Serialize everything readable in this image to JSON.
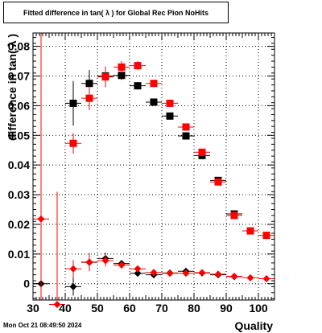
{
  "chart_data": {
    "type": "scatter",
    "title": "Fitted difference in tan( λ ) for Global Rec Pion NoHits",
    "xlabel": "Quality",
    "ylabel": "difference in tan( λ )",
    "xlim": [
      30,
      105
    ],
    "ylim": [
      -0.0055,
      0.0845
    ],
    "grid": true,
    "xticks": [
      30,
      40,
      50,
      60,
      70,
      80,
      90,
      100
    ],
    "yticks": [
      0,
      0.01,
      0.02,
      0.03,
      0.04,
      0.05,
      0.06,
      0.07,
      0.08
    ],
    "ytick_labels": [
      "0",
      "0.01",
      "0.02",
      "0.03",
      "0.04",
      "0.05",
      "0.06",
      "0.07",
      "0.08"
    ],
    "series": [
      {
        "color": "#000000",
        "marker": "square",
        "points": [
          {
            "x": 42.5,
            "y": 0.0608,
            "err": 0.0075
          },
          {
            "x": 47.5,
            "y": 0.0675,
            "err": 0.0045
          },
          {
            "x": 52.5,
            "y": 0.07,
            "err": 0.0025
          },
          {
            "x": 57.5,
            "y": 0.0702,
            "err": 0.0015
          },
          {
            "x": 62.5,
            "y": 0.0667,
            "err": 0.001
          },
          {
            "x": 67.5,
            "y": 0.0612,
            "err": 0.0008
          },
          {
            "x": 72.5,
            "y": 0.0565,
            "err": 0.0006
          },
          {
            "x": 77.5,
            "y": 0.0498,
            "err": 0.0005
          },
          {
            "x": 82.5,
            "y": 0.0432,
            "err": 0.0005
          },
          {
            "x": 87.5,
            "y": 0.0348,
            "err": 0.0005
          },
          {
            "x": 92.5,
            "y": 0.0235,
            "err": 0.0004
          }
        ]
      },
      {
        "color": "#ff0000",
        "marker": "square",
        "points": [
          {
            "x": 42.5,
            "y": 0.0473,
            "err": 0.0035
          },
          {
            "x": 47.5,
            "y": 0.0625,
            "err": 0.004
          },
          {
            "x": 52.5,
            "y": 0.0697,
            "err": 0.0035
          },
          {
            "x": 57.5,
            "y": 0.073,
            "err": 0.002
          },
          {
            "x": 62.5,
            "y": 0.0735,
            "err": 0.0015
          },
          {
            "x": 67.5,
            "y": 0.0675,
            "err": 0.001
          },
          {
            "x": 72.5,
            "y": 0.0608,
            "err": 0.0008
          },
          {
            "x": 77.5,
            "y": 0.0528,
            "err": 0.0006
          },
          {
            "x": 82.5,
            "y": 0.0443,
            "err": 0.0005
          },
          {
            "x": 87.5,
            "y": 0.0343,
            "err": 0.0005
          },
          {
            "x": 92.5,
            "y": 0.023,
            "err": 0.0004
          },
          {
            "x": 97.5,
            "y": 0.0178,
            "err": 0.0004
          },
          {
            "x": 102.5,
            "y": 0.0163,
            "err": 0.0004
          }
        ]
      },
      {
        "color": "#000000",
        "marker": "diamond",
        "points": [
          {
            "x": 32.5,
            "y": 0.0,
            "err": 0.008
          },
          {
            "x": 42.5,
            "y": -0.001,
            "err": 0.003
          },
          {
            "x": 47.5,
            "y": 0.0072,
            "err": 0.003
          },
          {
            "x": 52.5,
            "y": 0.0085,
            "err": 0.002
          },
          {
            "x": 57.5,
            "y": 0.0068,
            "err": 0.0012
          },
          {
            "x": 62.5,
            "y": 0.0035,
            "err": 0.001
          },
          {
            "x": 67.5,
            "y": 0.003,
            "err": 0.0007
          },
          {
            "x": 72.5,
            "y": 0.0036,
            "err": 0.0006
          },
          {
            "x": 77.5,
            "y": 0.0042,
            "err": 0.0005
          },
          {
            "x": 82.5,
            "y": 0.0036,
            "err": 0.0005
          },
          {
            "x": 87.5,
            "y": 0.003,
            "err": 0.0005
          },
          {
            "x": 92.5,
            "y": 0.0024,
            "err": 0.0004
          }
        ]
      },
      {
        "color": "#ff0000",
        "marker": "diamond",
        "points": [
          {
            "x": 32.5,
            "y": 0.0218,
            "err": 0.09
          },
          {
            "x": 37.5,
            "y": -0.007,
            "err": 0.038
          },
          {
            "x": 42.5,
            "y": 0.005,
            "err": 0.003
          },
          {
            "x": 47.5,
            "y": 0.0073,
            "err": 0.003
          },
          {
            "x": 52.5,
            "y": 0.0078,
            "err": 0.002
          },
          {
            "x": 57.5,
            "y": 0.0063,
            "err": 0.0012
          },
          {
            "x": 62.5,
            "y": 0.005,
            "err": 0.001
          },
          {
            "x": 67.5,
            "y": 0.0038,
            "err": 0.0007
          },
          {
            "x": 72.5,
            "y": 0.0035,
            "err": 0.0006
          },
          {
            "x": 77.5,
            "y": 0.0035,
            "err": 0.0005
          },
          {
            "x": 82.5,
            "y": 0.0037,
            "err": 0.0005
          },
          {
            "x": 87.5,
            "y": 0.0032,
            "err": 0.0005
          },
          {
            "x": 92.5,
            "y": 0.0025,
            "err": 0.0004
          },
          {
            "x": 97.5,
            "y": 0.002,
            "err": 0.0004
          },
          {
            "x": 102.5,
            "y": 0.0017,
            "err": 0.0004
          }
        ]
      }
    ]
  },
  "footer": {
    "timestamp": "Mon Oct 21 08:49:50 2024"
  }
}
